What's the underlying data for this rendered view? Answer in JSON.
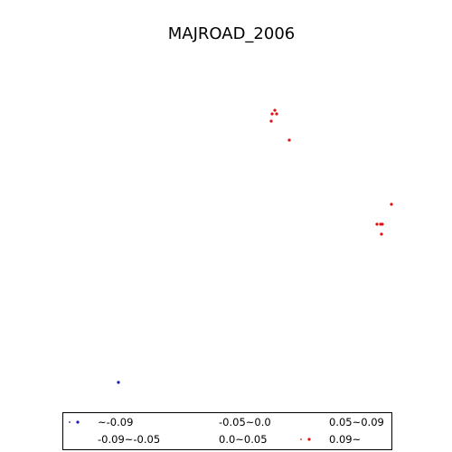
{
  "title": "MAJROAD_2006",
  "colors": {
    "negative": "#1a1aaa",
    "positive": "#e01010",
    "legend_border": "#000000"
  },
  "legend": {
    "entries": [
      {
        "label": "~-0.09",
        "class": "lt_neg009",
        "color": "#1a1aaa",
        "marker": true
      },
      {
        "label": "-0.09~-0.05",
        "class": "neg009_neg005",
        "color": "",
        "marker": false
      },
      {
        "label": "-0.05~0.0",
        "class": "neg005_0",
        "color": "",
        "marker": false
      },
      {
        "label": "0.0~0.05",
        "class": "0_005",
        "color": "",
        "marker": false
      },
      {
        "label": "0.05~0.09",
        "class": "005_009",
        "color": "",
        "marker": false
      },
      {
        "label": "0.09~",
        "class": "gt_009",
        "color": "#e01010",
        "marker": true
      }
    ]
  },
  "points": [
    {
      "class": "gt_009"
    },
    {
      "class": "gt_009"
    },
    {
      "class": "gt_009"
    },
    {
      "class": "gt_009"
    },
    {
      "class": "gt_009"
    },
    {
      "class": "gt_009"
    },
    {
      "class": "gt_009"
    },
    {
      "class": "gt_009"
    },
    {
      "class": "gt_009"
    },
    {
      "class": "gt_009"
    },
    {
      "class": "lt_neg009"
    }
  ]
}
